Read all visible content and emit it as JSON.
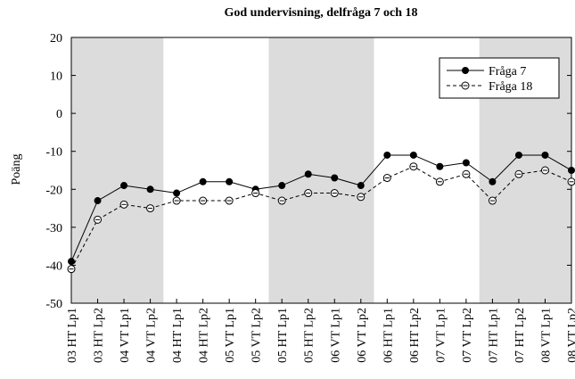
{
  "chart_data": {
    "type": "line",
    "title": "God undervisning, delfråga 7 och 18",
    "y_label": "Poäng",
    "categories": [
      "03 HT Lp1",
      "03 HT Lp2",
      "04 VT Lp1",
      "04 VT Lp2",
      "04 HT Lp1",
      "04 HT Lp2",
      "05 VT Lp1",
      "05 VT Lp2",
      "05 HT Lp1",
      "05 HT Lp2",
      "06 VT Lp1",
      "06 VT Lp2",
      "06 HT Lp1",
      "06 HT Lp2",
      "07 VT Lp1",
      "07 VT Lp2",
      "07 HT Lp1",
      "07 HT Lp2",
      "08 VT Lp1",
      "08 VT Lp2"
    ],
    "series": [
      {
        "name": "Fråga 7",
        "color": "#000000",
        "line": "solid",
        "marker": "filled",
        "values": [
          -39,
          -23,
          -19,
          -20,
          -21,
          -18,
          -18,
          -20,
          -19,
          -16,
          -17,
          -19,
          -11,
          -11,
          -14,
          -13,
          -18,
          -11,
          -11,
          -15
        ]
      },
      {
        "name": "Fråga 18",
        "color": "#000000",
        "line": "dashed",
        "marker": "open",
        "values": [
          -41,
          -28,
          -24,
          -25,
          -23,
          -23,
          -23,
          -21,
          -23,
          -21,
          -21,
          -22,
          -17,
          -14,
          -18,
          -16,
          -23,
          -16,
          -15,
          -18
        ]
      }
    ],
    "ylim": [
      -50,
      20
    ],
    "yticks": [
      -50,
      -40,
      -30,
      -20,
      -10,
      0,
      10,
      20
    ],
    "legend": "upper right"
  }
}
